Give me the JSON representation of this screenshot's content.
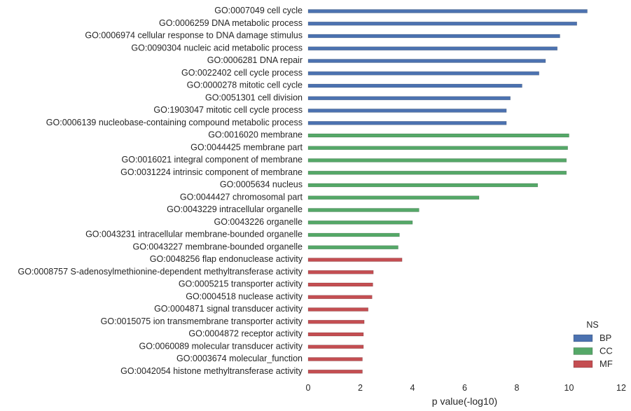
{
  "chart_data": {
    "type": "bar",
    "orientation": "horizontal",
    "xlabel": "p value(-log10)",
    "ylabel": "",
    "xlim": [
      0,
      12
    ],
    "xticks": [
      0,
      2,
      4,
      6,
      8,
      10,
      12
    ],
    "grid": false,
    "legend": {
      "title": "NS",
      "placement": "bottom-right",
      "entries": [
        {
          "name": "BP",
          "color": "#4c72b0"
        },
        {
          "name": "CC",
          "color": "#55a868"
        },
        {
          "name": "MF",
          "color": "#c44e52"
        }
      ]
    },
    "bars": [
      {
        "label": "GO:0007049 cell cycle",
        "ns": "BP",
        "value": 10.7
      },
      {
        "label": "GO:0006259 DNA metabolic process",
        "ns": "BP",
        "value": 10.3
      },
      {
        "label": "GO:0006974 cellular response to DNA damage stimulus",
        "ns": "BP",
        "value": 9.65
      },
      {
        "label": "GO:0090304 nucleic acid metabolic process",
        "ns": "BP",
        "value": 9.55
      },
      {
        "label": "GO:0006281 DNA repair",
        "ns": "BP",
        "value": 9.1
      },
      {
        "label": "GO:0022402 cell cycle process",
        "ns": "BP",
        "value": 8.85
      },
      {
        "label": "GO:0000278 mitotic cell cycle",
        "ns": "BP",
        "value": 8.2
      },
      {
        "label": "GO:0051301 cell division",
        "ns": "BP",
        "value": 7.75
      },
      {
        "label": "GO:1903047 mitotic cell cycle process",
        "ns": "BP",
        "value": 7.6
      },
      {
        "label": "GO:0006139 nucleobase-containing compound metabolic process",
        "ns": "BP",
        "value": 7.6
      },
      {
        "label": "GO:0016020 membrane",
        "ns": "CC",
        "value": 10.0
      },
      {
        "label": "GO:0044425 membrane part",
        "ns": "CC",
        "value": 9.95
      },
      {
        "label": "GO:0016021 integral component of membrane",
        "ns": "CC",
        "value": 9.9
      },
      {
        "label": "GO:0031224 intrinsic component of membrane",
        "ns": "CC",
        "value": 9.9
      },
      {
        "label": "GO:0005634 nucleus",
        "ns": "CC",
        "value": 8.8
      },
      {
        "label": "GO:0044427 chromosomal part",
        "ns": "CC",
        "value": 6.55
      },
      {
        "label": "GO:0043229 intracellular organelle",
        "ns": "CC",
        "value": 4.25
      },
      {
        "label": "GO:0043226 organelle",
        "ns": "CC",
        "value": 4.0
      },
      {
        "label": "GO:0043231 intracellular membrane-bounded organelle",
        "ns": "CC",
        "value": 3.5
      },
      {
        "label": "GO:0043227 membrane-bounded organelle",
        "ns": "CC",
        "value": 3.45
      },
      {
        "label": "GO:0048256 flap endonuclease activity",
        "ns": "MF",
        "value": 3.6
      },
      {
        "label": "GO:0008757 S-adenosylmethionine-dependent methyltransferase activity",
        "ns": "MF",
        "value": 2.5
      },
      {
        "label": "GO:0005215 transporter activity",
        "ns": "MF",
        "value": 2.48
      },
      {
        "label": "GO:0004518 nuclease activity",
        "ns": "MF",
        "value": 2.45
      },
      {
        "label": "GO:0004871 signal transducer activity",
        "ns": "MF",
        "value": 2.3
      },
      {
        "label": "GO:0015075 ion transmembrane transporter activity",
        "ns": "MF",
        "value": 2.15
      },
      {
        "label": "GO:0004872 receptor activity",
        "ns": "MF",
        "value": 2.12
      },
      {
        "label": "GO:0060089 molecular transducer activity",
        "ns": "MF",
        "value": 2.12
      },
      {
        "label": "GO:0003674 molecular_function",
        "ns": "MF",
        "value": 2.08
      },
      {
        "label": "GO:0042054 histone methyltransferase activity",
        "ns": "MF",
        "value": 2.08
      }
    ]
  }
}
